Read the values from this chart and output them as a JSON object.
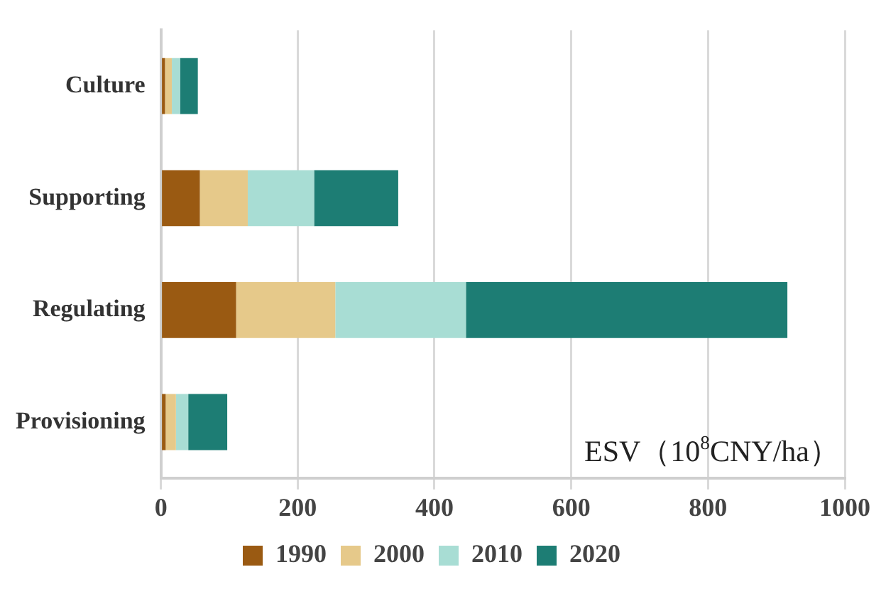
{
  "chart_data": {
    "type": "bar",
    "orientation": "horizontal",
    "stacked": true,
    "xlabel": "ESV（10$^{8}$CNY/ha）",
    "categories": [
      "Culture",
      "Supporting",
      "Regulating",
      "Provisioning"
    ],
    "series": [
      {
        "name": "1990",
        "color": "#9a5a12",
        "values": [
          6,
          57,
          110,
          7
        ]
      },
      {
        "name": "2000",
        "color": "#e6c98a",
        "values": [
          10,
          70,
          145,
          15
        ]
      },
      {
        "name": "2010",
        "color": "#a8ddd4",
        "values": [
          12,
          97,
          191,
          18
        ]
      },
      {
        "name": "2020",
        "color": "#1d7d74",
        "values": [
          26,
          123,
          470,
          57
        ]
      }
    ],
    "xlim": [
      0,
      1000
    ],
    "xticks": [
      0,
      200,
      400,
      600,
      800,
      1000
    ],
    "grid": "x",
    "legend": "bottom"
  }
}
